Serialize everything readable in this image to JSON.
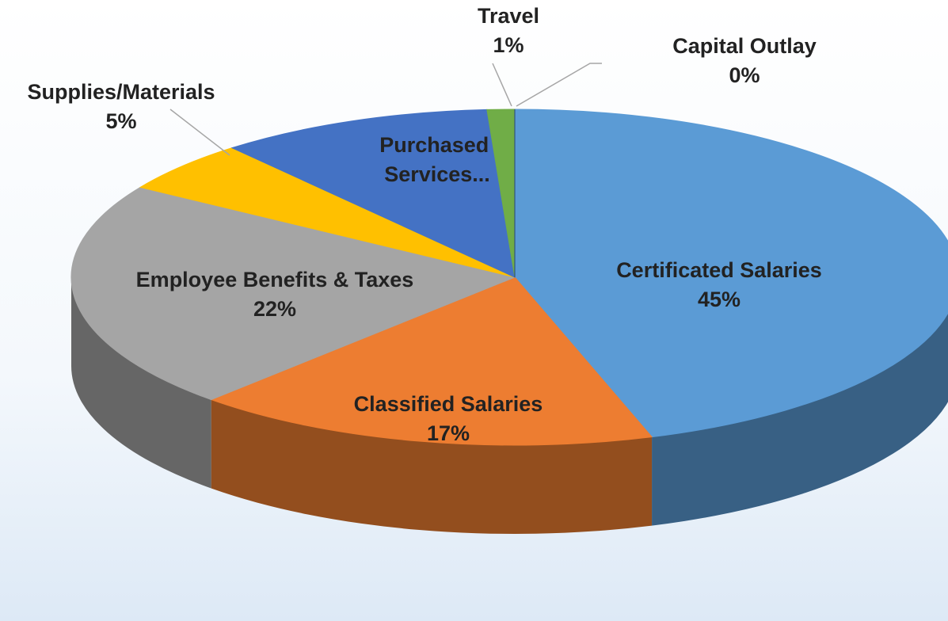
{
  "chart_data": {
    "type": "pie",
    "categories": [
      "Certificated Salaries",
      "Classified Salaries",
      "Employee Benefits & Taxes",
      "Supplies/Materials",
      "Purchased Services...",
      "Travel",
      "Capital Outlay"
    ],
    "values": [
      45,
      17,
      22,
      5,
      10,
      1,
      0
    ],
    "value_labels": [
      "45%",
      "17%",
      "22%",
      "5%",
      null,
      "1%",
      "0%"
    ],
    "colors": [
      "#5b9bd5",
      "#ed7d31",
      "#a5a5a5",
      "#ffc000",
      "#4472c4",
      "#70ad47",
      "#264478"
    ]
  }
}
